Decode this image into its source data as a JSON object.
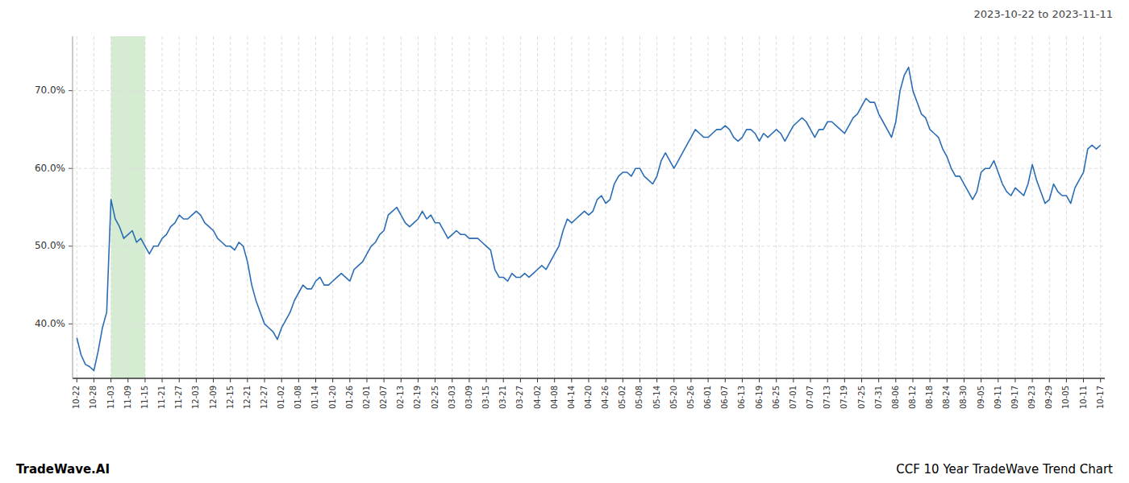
{
  "chart_data": {
    "type": "line",
    "title": "CCF 10 Year TradeWave Trend Chart",
    "subtitle": "2023-10-22 to 2023-11-11",
    "annotations": [
      "TradeWave.AI"
    ],
    "color": "#2a6db5",
    "grid": true,
    "highlight": {
      "from": "11-03",
      "to": "11-15",
      "color": "#d6ecd2"
    },
    "ylim": [
      0.33,
      0.77
    ],
    "yticks": [
      {
        "value": 0.4,
        "label": "40.0%"
      },
      {
        "value": 0.5,
        "label": "50.0%"
      },
      {
        "value": 0.6,
        "label": "60.0%"
      },
      {
        "value": 0.7,
        "label": "70.0%"
      }
    ],
    "categories": [
      "10-22",
      null,
      null,
      null,
      "10-28",
      null,
      null,
      null,
      "11-03",
      null,
      null,
      null,
      "11-09",
      null,
      null,
      null,
      "11-15",
      null,
      null,
      null,
      "11-21",
      null,
      null,
      null,
      "11-27",
      null,
      null,
      null,
      "12-03",
      null,
      null,
      null,
      "12-09",
      null,
      null,
      null,
      "12-15",
      null,
      null,
      null,
      "12-21",
      null,
      null,
      null,
      "12-27",
      null,
      null,
      null,
      "01-02",
      null,
      null,
      null,
      "01-08",
      null,
      null,
      null,
      "01-14",
      null,
      null,
      null,
      "01-20",
      null,
      null,
      null,
      "01-26",
      null,
      null,
      null,
      "02-01",
      null,
      null,
      null,
      "02-07",
      null,
      null,
      null,
      "02-13",
      null,
      null,
      null,
      "02-19",
      null,
      null,
      null,
      "02-25",
      null,
      null,
      null,
      "03-03",
      null,
      null,
      null,
      "03-09",
      null,
      null,
      null,
      "03-15",
      null,
      null,
      null,
      "03-21",
      null,
      null,
      null,
      "03-27",
      null,
      null,
      null,
      "04-02",
      null,
      null,
      null,
      "04-08",
      null,
      null,
      null,
      "04-14",
      null,
      null,
      null,
      "04-20",
      null,
      null,
      null,
      "04-26",
      null,
      null,
      null,
      "05-02",
      null,
      null,
      null,
      "05-08",
      null,
      null,
      null,
      "05-14",
      null,
      null,
      null,
      "05-20",
      null,
      null,
      null,
      "05-26",
      null,
      null,
      null,
      "06-01",
      null,
      null,
      null,
      "06-07",
      null,
      null,
      null,
      "06-13",
      null,
      null,
      null,
      "06-19",
      null,
      null,
      null,
      "06-25",
      null,
      null,
      null,
      "07-01",
      null,
      null,
      null,
      "07-07",
      null,
      null,
      null,
      "07-13",
      null,
      null,
      null,
      "07-19",
      null,
      null,
      null,
      "07-25",
      null,
      null,
      null,
      "07-31",
      null,
      null,
      null,
      "08-06",
      null,
      null,
      null,
      "08-12",
      null,
      null,
      null,
      "08-18",
      null,
      null,
      null,
      "08-24",
      null,
      null,
      null,
      "08-30",
      null,
      null,
      null,
      "09-05",
      null,
      null,
      null,
      "09-11",
      null,
      null,
      null,
      "09-17",
      null,
      null,
      null,
      "09-23",
      null,
      null,
      null,
      "09-29",
      null,
      null,
      null,
      "10-05",
      null,
      null,
      null,
      "10-11",
      null,
      null,
      null,
      "10-17"
    ],
    "values": [
      0.382,
      0.36,
      0.348,
      0.345,
      0.34,
      0.365,
      0.395,
      0.415,
      0.56,
      0.535,
      0.525,
      0.51,
      0.515,
      0.52,
      0.505,
      0.51,
      0.5,
      0.49,
      0.5,
      0.5,
      0.51,
      0.515,
      0.525,
      0.53,
      0.54,
      0.535,
      0.535,
      0.54,
      0.545,
      0.54,
      0.53,
      0.525,
      0.52,
      0.51,
      0.505,
      0.5,
      0.5,
      0.495,
      0.505,
      0.5,
      0.48,
      0.45,
      0.43,
      0.415,
      0.4,
      0.395,
      0.39,
      0.38,
      0.395,
      0.405,
      0.415,
      0.43,
      0.44,
      0.45,
      0.445,
      0.445,
      0.455,
      0.46,
      0.45,
      0.45,
      0.455,
      0.46,
      0.465,
      0.46,
      0.455,
      0.47,
      0.475,
      0.48,
      0.49,
      0.5,
      0.505,
      0.515,
      0.52,
      0.54,
      0.545,
      0.55,
      0.54,
      0.53,
      0.525,
      0.53,
      0.535,
      0.545,
      0.535,
      0.54,
      0.53,
      0.53,
      0.52,
      0.51,
      0.515,
      0.52,
      0.515,
      0.515,
      0.51,
      0.51,
      0.51,
      0.505,
      0.5,
      0.495,
      0.47,
      0.46,
      0.46,
      0.455,
      0.465,
      0.46,
      0.46,
      0.465,
      0.46,
      0.465,
      0.47,
      0.475,
      0.47,
      0.48,
      0.49,
      0.5,
      0.52,
      0.535,
      0.53,
      0.535,
      0.54,
      0.545,
      0.54,
      0.545,
      0.56,
      0.565,
      0.555,
      0.56,
      0.58,
      0.59,
      0.595,
      0.595,
      0.59,
      0.6,
      0.6,
      0.59,
      0.585,
      0.58,
      0.59,
      0.61,
      0.62,
      0.61,
      0.6,
      0.61,
      0.62,
      0.63,
      0.64,
      0.65,
      0.645,
      0.64,
      0.64,
      0.645,
      0.65,
      0.65,
      0.655,
      0.65,
      0.64,
      0.635,
      0.64,
      0.65,
      0.65,
      0.645,
      0.635,
      0.645,
      0.64,
      0.645,
      0.65,
      0.645,
      0.635,
      0.645,
      0.655,
      0.66,
      0.665,
      0.66,
      0.65,
      0.64,
      0.65,
      0.65,
      0.66,
      0.66,
      0.655,
      0.65,
      0.645,
      0.655,
      0.665,
      0.67,
      0.68,
      0.69,
      0.685,
      0.685,
      0.67,
      0.66,
      0.65,
      0.64,
      0.66,
      0.7,
      0.72,
      0.73,
      0.7,
      0.685,
      0.67,
      0.665,
      0.65,
      0.645,
      0.64,
      0.625,
      0.615,
      0.6,
      0.59,
      0.59,
      0.58,
      0.57,
      0.56,
      0.57,
      0.595,
      0.6,
      0.6,
      0.61,
      0.595,
      0.58,
      0.57,
      0.565,
      0.575,
      0.57,
      0.565,
      0.58,
      0.605,
      0.585,
      0.57,
      0.555,
      0.56,
      0.58,
      0.57,
      0.565,
      0.565,
      0.555,
      0.575,
      0.585,
      0.595,
      0.625,
      0.63,
      0.625,
      0.63
    ]
  }
}
